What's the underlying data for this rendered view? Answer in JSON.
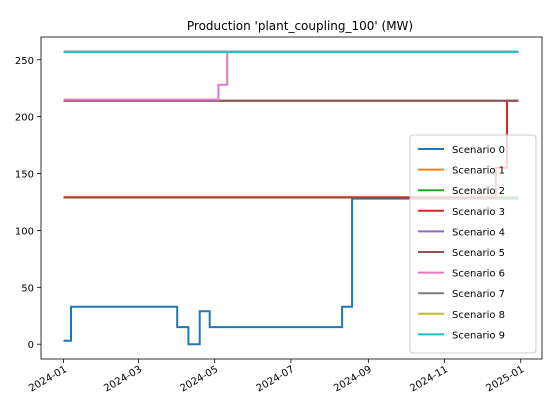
{
  "chart_data": {
    "type": "line",
    "title": "Production 'plant_coupling_100' (MW)",
    "xlabel": "",
    "ylabel": "",
    "x_axis": "date",
    "xlim": [
      "2023-12-14",
      "2025-01-18"
    ],
    "ylim": [
      -13,
      270
    ],
    "xticks": [
      {
        "date": "2024-01-01",
        "label": "2024-01"
      },
      {
        "date": "2024-03-01",
        "label": "2024-03"
      },
      {
        "date": "2024-05-01",
        "label": "2024-05"
      },
      {
        "date": "2024-07-01",
        "label": "2024-07"
      },
      {
        "date": "2024-09-01",
        "label": "2024-09"
      },
      {
        "date": "2024-11-01",
        "label": "2024-11"
      },
      {
        "date": "2025-01-01",
        "label": "2025-01"
      }
    ],
    "yticks": [
      0,
      50,
      100,
      150,
      200,
      250
    ],
    "grid": false,
    "legend_position": "lower-right",
    "series": [
      {
        "name": "Scenario 0",
        "color": "#1f77b4",
        "step": true,
        "points": [
          [
            "2024-01-01",
            3
          ],
          [
            "2024-01-07",
            33
          ],
          [
            "2024-03-31",
            33
          ],
          [
            "2024-04-01",
            15
          ],
          [
            "2024-04-10",
            0
          ],
          [
            "2024-04-19",
            29
          ],
          [
            "2024-04-27",
            15
          ],
          [
            "2024-08-11",
            33
          ],
          [
            "2024-08-19",
            128
          ],
          [
            "2024-12-30",
            128
          ]
        ]
      },
      {
        "name": "Scenario 1",
        "color": "#ff7f0e",
        "step": true,
        "points": [
          [
            "2024-01-01",
            129
          ],
          [
            "2024-12-30",
            129
          ]
        ]
      },
      {
        "name": "Scenario 2",
        "color": "#2ca02c",
        "step": true,
        "points": [
          [
            "2024-01-01",
            129
          ],
          [
            "2024-12-30",
            129
          ]
        ]
      },
      {
        "name": "Scenario 3",
        "color": "#d62728",
        "step": true,
        "points": [
          [
            "2024-01-01",
            129
          ],
          [
            "2024-12-12",
            155
          ],
          [
            "2024-12-21",
            214
          ],
          [
            "2024-12-30",
            214
          ]
        ]
      },
      {
        "name": "Scenario 4",
        "color": "#9467bd",
        "step": true,
        "points": [
          [
            "2024-01-01",
            214
          ],
          [
            "2024-12-30",
            214
          ]
        ]
      },
      {
        "name": "Scenario 5",
        "color": "#8c564b",
        "step": true,
        "points": [
          [
            "2024-01-01",
            214
          ],
          [
            "2024-12-30",
            214
          ]
        ]
      },
      {
        "name": "Scenario 6",
        "color": "#e377c2",
        "step": true,
        "points": [
          [
            "2024-01-01",
            215
          ],
          [
            "2024-05-04",
            228
          ],
          [
            "2024-05-11",
            257
          ],
          [
            "2024-12-30",
            257
          ]
        ]
      },
      {
        "name": "Scenario 7",
        "color": "#7f7f7f",
        "step": true,
        "points": [
          [
            "2024-01-01",
            257
          ],
          [
            "2024-12-30",
            257
          ]
        ]
      },
      {
        "name": "Scenario 8",
        "color": "#bcbd22",
        "step": true,
        "points": [
          [
            "2024-01-01",
            257
          ],
          [
            "2024-12-30",
            257
          ]
        ]
      },
      {
        "name": "Scenario 9",
        "color": "#17becf",
        "step": true,
        "points": [
          [
            "2024-01-01",
            257
          ],
          [
            "2024-12-30",
            257
          ]
        ]
      }
    ]
  }
}
